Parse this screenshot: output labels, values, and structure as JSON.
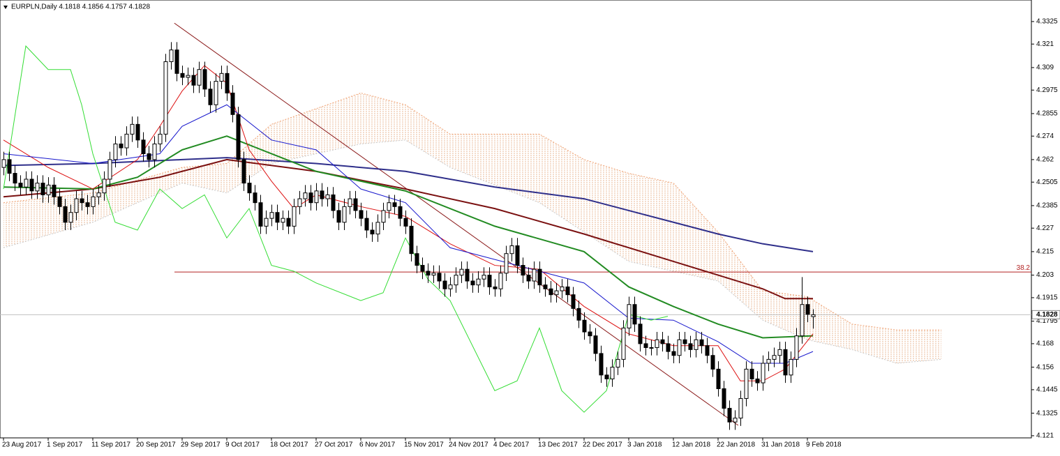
{
  "chart_data": {
    "type": "candlestick",
    "title": "EURPLN,Daily  4.1818 4.1856 4.1757 4.1828",
    "ylim": [
      4.1199,
      4.3435
    ],
    "yticks": [
      4.3325,
      4.321,
      4.309,
      4.2975,
      4.2855,
      4.274,
      4.262,
      4.2505,
      4.2385,
      4.227,
      4.215,
      4.203,
      4.1915,
      4.1795,
      4.168,
      4.156,
      4.1445,
      4.1325,
      4.121
    ],
    "categories": [
      "23 Aug 2017",
      null,
      null,
      null,
      null,
      null,
      null,
      null,
      "1 Sep 2017",
      null,
      null,
      null,
      null,
      null,
      null,
      null,
      "11 Sep 2017",
      null,
      null,
      null,
      null,
      null,
      null,
      null,
      "20 Sep 2017",
      null,
      null,
      null,
      null,
      null,
      null,
      null,
      "29 Sep 2017",
      null,
      null,
      null,
      null,
      null,
      null,
      null,
      "9 Oct 2017",
      null,
      null,
      null,
      null,
      null,
      null,
      null,
      "18 Oct 2017",
      null,
      null,
      null,
      null,
      null,
      null,
      null,
      "27 Oct 2017",
      null,
      null,
      null,
      null,
      null,
      null,
      null,
      "6 Nov 2017",
      null,
      null,
      null,
      null,
      null,
      null,
      null,
      "15 Nov 2017",
      null,
      null,
      null,
      null,
      null,
      null,
      null,
      "24 Nov 2017",
      null,
      null,
      null,
      null,
      null,
      null,
      null,
      "4 Dec 2017",
      null,
      null,
      null,
      null,
      null,
      null,
      null,
      "13 Dec 2017",
      null,
      null,
      null,
      null,
      null,
      null,
      null,
      "22 Dec 2017",
      null,
      null,
      null,
      null,
      null,
      null,
      null,
      "3 Jan 2018",
      null,
      null,
      null,
      null,
      null,
      null,
      null,
      "12 Jan 2018",
      null,
      null,
      null,
      null,
      null,
      null,
      null,
      "22 Jan 2018",
      null,
      null,
      null,
      null,
      null,
      null,
      null,
      "31 Jan 2018",
      null,
      null,
      null,
      null,
      null,
      null,
      null,
      "9 Feb 2018",
      null
    ],
    "ohlc": [
      [
        4.258,
        4.266,
        4.254,
        4.262
      ],
      [
        4.262,
        4.266,
        4.251,
        4.255
      ],
      [
        4.255,
        4.259,
        4.246,
        4.25
      ],
      [
        4.25,
        4.254,
        4.244,
        4.248
      ],
      [
        4.248,
        4.256,
        4.244,
        4.252
      ],
      [
        4.252,
        4.256,
        4.242,
        4.246
      ],
      [
        4.246,
        4.254,
        4.242,
        4.25
      ],
      [
        4.25,
        4.254,
        4.24,
        4.244
      ],
      [
        4.244,
        4.253,
        4.24,
        4.249
      ],
      [
        4.249,
        4.253,
        4.239,
        4.243
      ],
      [
        4.243,
        4.247,
        4.234,
        4.238
      ],
      [
        4.238,
        4.242,
        4.226,
        4.23
      ],
      [
        4.23,
        4.239,
        4.226,
        4.235
      ],
      [
        4.235,
        4.246,
        4.231,
        4.242
      ],
      [
        4.242,
        4.246,
        4.236,
        4.24
      ],
      [
        4.24,
        4.244,
        4.234,
        4.238
      ],
      [
        4.238,
        4.247,
        4.234,
        4.243
      ],
      [
        4.243,
        4.249,
        4.239,
        4.245
      ],
      [
        4.245,
        4.256,
        4.241,
        4.252
      ],
      [
        4.252,
        4.266,
        4.248,
        4.262
      ],
      [
        4.262,
        4.274,
        4.258,
        4.27
      ],
      [
        4.27,
        4.274,
        4.264,
        4.268
      ],
      [
        4.268,
        4.279,
        4.264,
        4.275
      ],
      [
        4.275,
        4.284,
        4.271,
        4.28
      ],
      [
        4.28,
        4.284,
        4.268,
        4.272
      ],
      [
        4.272,
        4.276,
        4.261,
        4.265
      ],
      [
        4.265,
        4.269,
        4.258,
        4.262
      ],
      [
        4.262,
        4.274,
        4.258,
        4.27
      ],
      [
        4.27,
        4.279,
        4.266,
        4.275
      ],
      [
        4.275,
        4.316,
        4.271,
        4.312
      ],
      [
        4.312,
        4.322,
        4.308,
        4.318
      ],
      [
        4.318,
        4.322,
        4.302,
        4.306
      ],
      [
        4.306,
        4.31,
        4.3,
        4.304
      ],
      [
        4.304,
        4.309,
        4.3,
        4.305
      ],
      [
        4.305,
        4.309,
        4.296,
        4.3
      ],
      [
        4.3,
        4.312,
        4.296,
        4.308
      ],
      [
        4.308,
        4.312,
        4.294,
        4.298
      ],
      [
        4.298,
        4.302,
        4.286,
        4.29
      ],
      [
        4.29,
        4.306,
        4.286,
        4.302
      ],
      [
        4.302,
        4.31,
        4.298,
        4.306
      ],
      [
        4.306,
        4.31,
        4.292,
        4.296
      ],
      [
        4.296,
        4.3,
        4.281,
        4.285
      ],
      [
        4.285,
        4.289,
        4.258,
        4.262
      ],
      [
        4.262,
        4.266,
        4.246,
        4.25
      ],
      [
        4.25,
        4.254,
        4.241,
        4.245
      ],
      [
        4.245,
        4.249,
        4.236,
        4.24
      ],
      [
        4.24,
        4.244,
        4.224,
        4.228
      ],
      [
        4.228,
        4.236,
        4.224,
        4.232
      ],
      [
        4.232,
        4.239,
        4.228,
        4.235
      ],
      [
        4.235,
        4.239,
        4.226,
        4.23
      ],
      [
        4.23,
        4.236,
        4.226,
        4.232
      ],
      [
        4.232,
        4.236,
        4.224,
        4.228
      ],
      [
        4.228,
        4.242,
        4.224,
        4.238
      ],
      [
        4.238,
        4.246,
        4.234,
        4.242
      ],
      [
        4.242,
        4.249,
        4.238,
        4.245
      ],
      [
        4.245,
        4.249,
        4.236,
        4.24
      ],
      [
        4.24,
        4.25,
        4.236,
        4.246
      ],
      [
        4.246,
        4.25,
        4.238,
        4.242
      ],
      [
        4.242,
        4.248,
        4.238,
        4.244
      ],
      [
        4.244,
        4.248,
        4.232,
        4.236
      ],
      [
        4.236,
        4.24,
        4.226,
        4.23
      ],
      [
        4.23,
        4.242,
        4.226,
        4.238
      ],
      [
        4.238,
        4.246,
        4.234,
        4.242
      ],
      [
        4.242,
        4.246,
        4.232,
        4.236
      ],
      [
        4.236,
        4.24,
        4.228,
        4.232
      ],
      [
        4.232,
        4.236,
        4.222,
        4.226
      ],
      [
        4.226,
        4.23,
        4.22,
        4.224
      ],
      [
        4.224,
        4.234,
        4.22,
        4.23
      ],
      [
        4.23,
        4.24,
        4.226,
        4.236
      ],
      [
        4.236,
        4.244,
        4.232,
        4.24
      ],
      [
        4.24,
        4.244,
        4.234,
        4.238
      ],
      [
        4.238,
        4.242,
        4.228,
        4.232
      ],
      [
        4.232,
        4.236,
        4.224,
        4.228
      ],
      [
        4.228,
        4.232,
        4.21,
        4.214
      ],
      [
        4.214,
        4.218,
        4.204,
        4.208
      ],
      [
        4.208,
        4.212,
        4.201,
        4.205
      ],
      [
        4.205,
        4.209,
        4.199,
        4.203
      ],
      [
        4.203,
        4.208,
        4.199,
        4.204
      ],
      [
        4.204,
        4.208,
        4.196,
        4.2
      ],
      [
        4.2,
        4.204,
        4.192,
        4.196
      ],
      [
        4.196,
        4.202,
        4.192,
        4.198
      ],
      [
        4.198,
        4.207,
        4.194,
        4.203
      ],
      [
        4.203,
        4.21,
        4.199,
        4.206
      ],
      [
        4.206,
        4.21,
        4.196,
        4.2
      ],
      [
        4.2,
        4.204,
        4.194,
        4.198
      ],
      [
        4.198,
        4.205,
        4.194,
        4.201
      ],
      [
        4.201,
        4.207,
        4.197,
        4.203
      ],
      [
        4.203,
        4.207,
        4.193,
        4.197
      ],
      [
        4.197,
        4.201,
        4.192,
        4.196
      ],
      [
        4.196,
        4.208,
        4.192,
        4.204
      ],
      [
        4.204,
        4.218,
        4.2,
        4.214
      ],
      [
        4.214,
        4.222,
        4.21,
        4.218
      ],
      [
        4.218,
        4.222,
        4.204,
        4.208
      ],
      [
        4.208,
        4.212,
        4.199,
        4.203
      ],
      [
        4.203,
        4.207,
        4.196,
        4.2
      ],
      [
        4.2,
        4.21,
        4.196,
        4.206
      ],
      [
        4.206,
        4.21,
        4.194,
        4.198
      ],
      [
        4.198,
        4.202,
        4.192,
        4.196
      ],
      [
        4.196,
        4.2,
        4.189,
        4.193
      ],
      [
        4.193,
        4.199,
        4.189,
        4.195
      ],
      [
        4.195,
        4.201,
        4.191,
        4.197
      ],
      [
        4.197,
        4.201,
        4.189,
        4.193
      ],
      [
        4.193,
        4.197,
        4.182,
        4.186
      ],
      [
        4.186,
        4.19,
        4.176,
        4.18
      ],
      [
        4.18,
        4.184,
        4.17,
        4.174
      ],
      [
        4.174,
        4.178,
        4.168,
        4.172
      ],
      [
        4.172,
        4.176,
        4.159,
        4.163
      ],
      [
        4.163,
        4.167,
        4.148,
        4.152
      ],
      [
        4.152,
        4.156,
        4.146,
        4.15
      ],
      [
        4.15,
        4.16,
        4.146,
        4.156
      ],
      [
        4.156,
        4.164,
        4.152,
        4.16
      ],
      [
        4.16,
        4.18,
        4.156,
        4.176
      ],
      [
        4.176,
        4.192,
        4.172,
        4.188
      ],
      [
        4.188,
        4.192,
        4.174,
        4.178
      ],
      [
        4.178,
        4.182,
        4.164,
        4.168
      ],
      [
        4.168,
        4.172,
        4.162,
        4.166
      ],
      [
        4.166,
        4.17,
        4.162,
        4.166
      ],
      [
        4.166,
        4.174,
        4.162,
        4.17
      ],
      [
        4.17,
        4.174,
        4.164,
        4.168
      ],
      [
        4.168,
        4.172,
        4.16,
        4.164
      ],
      [
        4.164,
        4.168,
        4.158,
        4.162
      ],
      [
        4.162,
        4.174,
        4.158,
        4.17
      ],
      [
        4.17,
        4.174,
        4.164,
        4.168
      ],
      [
        4.168,
        4.172,
        4.161,
        4.165
      ],
      [
        4.165,
        4.174,
        4.161,
        4.17
      ],
      [
        4.17,
        4.174,
        4.163,
        4.167
      ],
      [
        4.167,
        4.171,
        4.158,
        4.162
      ],
      [
        4.162,
        4.166,
        4.151,
        4.155
      ],
      [
        4.155,
        4.159,
        4.141,
        4.145
      ],
      [
        4.145,
        4.149,
        4.131,
        4.135
      ],
      [
        4.135,
        4.139,
        4.124,
        4.128
      ],
      [
        4.128,
        4.134,
        4.124,
        4.13
      ],
      [
        4.13,
        4.144,
        4.126,
        4.14
      ],
      [
        4.14,
        4.159,
        4.136,
        4.155
      ],
      [
        4.155,
        4.159,
        4.146,
        4.15
      ],
      [
        4.15,
        4.154,
        4.144,
        4.148
      ],
      [
        4.148,
        4.162,
        4.144,
        4.158
      ],
      [
        4.158,
        4.164,
        4.154,
        4.16
      ],
      [
        4.16,
        4.166,
        4.156,
        4.162
      ],
      [
        4.162,
        4.169,
        4.158,
        4.165
      ],
      [
        4.165,
        4.169,
        4.148,
        4.152
      ],
      [
        4.152,
        4.164,
        4.148,
        4.16
      ],
      [
        4.16,
        4.176,
        4.156,
        4.172
      ],
      [
        4.172,
        4.202,
        4.168,
        4.188
      ],
      [
        4.188,
        4.192,
        4.179,
        4.183
      ],
      [
        4.1818,
        4.1856,
        4.1757,
        4.1828
      ]
    ],
    "lines": [
      {
        "color": "#2e2e8a",
        "width": 2,
        "x": [
          0,
          16,
          32,
          40,
          56,
          72,
          88,
          104,
          112,
          120,
          128,
          136,
          145
        ],
        "values": [
          4.259,
          4.26,
          4.262,
          4.263,
          4.26,
          4.256,
          4.248,
          4.242,
          4.236,
          4.23,
          4.224,
          4.219,
          4.215
        ]
      },
      {
        "color": "#7a1010",
        "width": 2,
        "x": [
          0,
          16,
          28,
          40,
          56,
          72,
          88,
          104,
          120,
          128,
          136,
          140,
          145
        ],
        "values": [
          4.243,
          4.247,
          4.253,
          4.262,
          4.256,
          4.247,
          4.237,
          4.224,
          4.21,
          4.203,
          4.196,
          4.191,
          4.191
        ]
      },
      {
        "color": "#228b22",
        "width": 2,
        "x": [
          0,
          16,
          24,
          32,
          40,
          48,
          56,
          72,
          88,
          104,
          112,
          120,
          128,
          136,
          145
        ],
        "values": [
          4.248,
          4.247,
          4.253,
          4.267,
          4.274,
          4.265,
          4.256,
          4.246,
          4.228,
          4.215,
          4.197,
          4.187,
          4.178,
          4.171,
          4.172
        ]
      },
      {
        "color": "#dd1111",
        "width": 1,
        "x": [
          0,
          8,
          16,
          24,
          28,
          32,
          36,
          40,
          44,
          48,
          52,
          56,
          64,
          72,
          80,
          88,
          96,
          104,
          112,
          120,
          128,
          132,
          136,
          140,
          145
        ],
        "values": [
          4.272,
          4.258,
          4.247,
          4.262,
          4.279,
          4.297,
          4.31,
          4.301,
          4.267,
          4.251,
          4.237,
          4.244,
          4.238,
          4.233,
          4.219,
          4.208,
          4.206,
          4.187,
          4.173,
          4.167,
          4.167,
          4.149,
          4.149,
          4.155,
          4.173
        ]
      },
      {
        "color": "#1515cc",
        "width": 1,
        "x": [
          0,
          16,
          28,
          32,
          40,
          48,
          56,
          64,
          72,
          80,
          96,
          104,
          112,
          120,
          128,
          134,
          140,
          145
        ],
        "values": [
          4.265,
          4.26,
          4.265,
          4.279,
          4.29,
          4.272,
          4.267,
          4.247,
          4.24,
          4.217,
          4.205,
          4.199,
          4.181,
          4.18,
          4.169,
          4.158,
          4.158,
          4.164
        ]
      },
      {
        "color": "#33dd33",
        "width": 1,
        "x": [
          0,
          4,
          8,
          12,
          14,
          16,
          20,
          24,
          28,
          32,
          36,
          40,
          44,
          48,
          52,
          56,
          64,
          68,
          72,
          76,
          80,
          88,
          92,
          96,
          100,
          104,
          108,
          112,
          116,
          119
        ],
        "values": [
          4.247,
          4.32,
          4.308,
          4.308,
          4.29,
          4.265,
          4.23,
          4.226,
          4.247,
          4.237,
          4.244,
          4.222,
          4.237,
          4.208,
          4.205,
          4.199,
          4.19,
          4.194,
          4.222,
          4.201,
          4.19,
          4.144,
          4.149,
          4.176,
          4.144,
          4.133,
          4.144,
          4.183,
          4.18,
          4.182
        ]
      }
    ],
    "cloud": {
      "x": [
        0,
        16,
        32,
        40,
        48,
        64,
        72,
        80,
        96,
        104,
        112,
        120,
        128,
        136,
        144,
        152,
        160,
        168
      ],
      "upper": [
        4.24,
        4.245,
        4.258,
        4.26,
        4.28,
        4.296,
        4.29,
        4.275,
        4.275,
        4.262,
        4.255,
        4.25,
        4.225,
        4.195,
        4.192,
        4.178,
        4.175,
        4.175
      ],
      "lower": [
        4.217,
        4.23,
        4.25,
        4.245,
        4.26,
        4.27,
        4.272,
        4.258,
        4.24,
        4.225,
        4.21,
        4.205,
        4.2,
        4.18,
        4.17,
        4.165,
        4.158,
        4.16
      ]
    },
    "trendline": {
      "x": [
        30.6,
        131.6
      ],
      "values": [
        4.3317,
        4.1263
      ]
    },
    "levels": [
      {
        "value": 4.2046,
        "label": "38.2",
        "color": "#b22222"
      }
    ],
    "last_price": 4.1828
  }
}
